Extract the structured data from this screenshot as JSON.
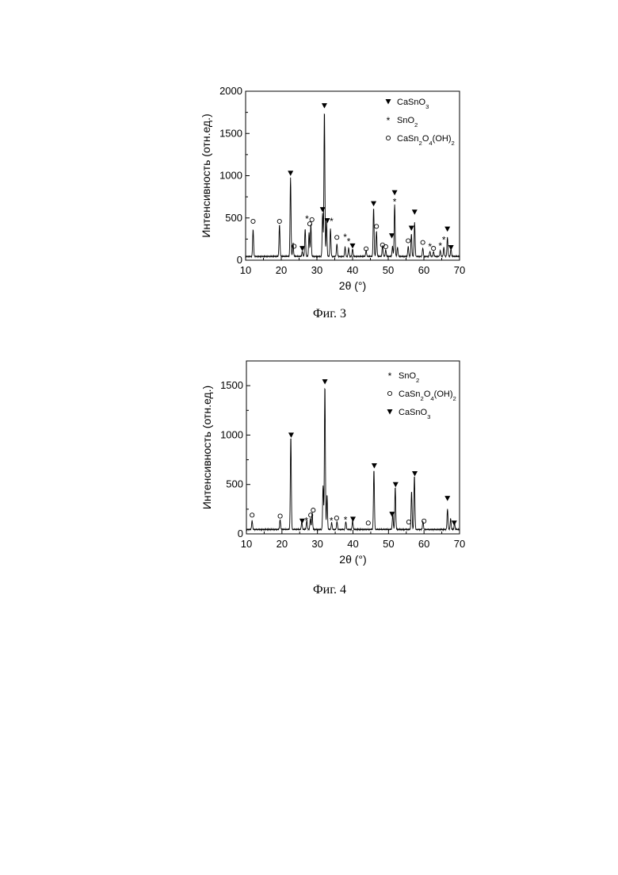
{
  "chart_data": [
    {
      "type": "line",
      "figure_caption": "Фиг. 3",
      "xlabel": "2θ (°)",
      "ylabel": "Интенсивность (отн.ед.)",
      "xlim": [
        10,
        70
      ],
      "ylim": [
        0,
        2000
      ],
      "xticks": [
        10,
        20,
        30,
        40,
        50,
        60,
        70
      ],
      "yticks": [
        0,
        500,
        1000,
        1500,
        2000
      ],
      "grid": false,
      "legend_position": "top-right",
      "legend": [
        {
          "symbol": "▼",
          "label": "CaSnO₃"
        },
        {
          "symbol": "*",
          "label": "SnO₂"
        },
        {
          "symbol": "○",
          "label": "CaSn₂O₄(OH)₂"
        }
      ],
      "series": [
        {
          "baseline": 45,
          "peaks": [
            [
              12.1,
              320
            ],
            [
              19.5,
              380
            ],
            [
              22.6,
              930
            ],
            [
              23.3,
              160
            ],
            [
              25.9,
              60
            ],
            [
              26.7,
              330
            ],
            [
              27.8,
              280
            ],
            [
              28.3,
              380
            ],
            [
              31.6,
              520
            ],
            [
              32.1,
              1740
            ],
            [
              32.7,
              420
            ],
            [
              33.8,
              330
            ],
            [
              35.6,
              150
            ],
            [
              37.9,
              110
            ],
            [
              38.9,
              100
            ],
            [
              40.0,
              90
            ],
            [
              43.8,
              70
            ],
            [
              45.9,
              580
            ],
            [
              46.7,
              300
            ],
            [
              48.4,
              130
            ],
            [
              49.3,
              80
            ],
            [
              51.2,
              120
            ],
            [
              51.8,
              620
            ],
            [
              52.6,
              110
            ],
            [
              55.6,
              120
            ],
            [
              56.5,
              270
            ],
            [
              57.4,
              400
            ],
            [
              59.7,
              100
            ],
            [
              61.7,
              60
            ],
            [
              62.7,
              60
            ],
            [
              64.6,
              70
            ],
            [
              65.6,
              110
            ],
            [
              66.6,
              230
            ],
            [
              67.6,
              90
            ]
          ]
        }
      ],
      "markers": [
        {
          "x": 12.1,
          "y": 460,
          "symbol": "○"
        },
        {
          "x": 19.5,
          "y": 460,
          "symbol": "○"
        },
        {
          "x": 22.6,
          "y": 1030,
          "symbol": "▼"
        },
        {
          "x": 23.6,
          "y": 165,
          "symbol": "○"
        },
        {
          "x": 25.9,
          "y": 140,
          "symbol": "▼"
        },
        {
          "x": 27.2,
          "y": 500,
          "symbol": "*"
        },
        {
          "x": 28.0,
          "y": 430,
          "symbol": "○"
        },
        {
          "x": 28.6,
          "y": 480,
          "symbol": "○"
        },
        {
          "x": 31.6,
          "y": 600,
          "symbol": "▼"
        },
        {
          "x": 32.1,
          "y": 1830,
          "symbol": "▼"
        },
        {
          "x": 32.9,
          "y": 470,
          "symbol": "▼"
        },
        {
          "x": 34.1,
          "y": 470,
          "symbol": "*"
        },
        {
          "x": 35.6,
          "y": 270,
          "symbol": "○"
        },
        {
          "x": 37.9,
          "y": 280,
          "symbol": "*"
        },
        {
          "x": 38.9,
          "y": 230,
          "symbol": "*"
        },
        {
          "x": 40.0,
          "y": 170,
          "symbol": "▼"
        },
        {
          "x": 43.8,
          "y": 135,
          "symbol": "○"
        },
        {
          "x": 45.9,
          "y": 670,
          "symbol": "▼"
        },
        {
          "x": 46.7,
          "y": 400,
          "symbol": "○"
        },
        {
          "x": 48.4,
          "y": 180,
          "symbol": "○"
        },
        {
          "x": 49.3,
          "y": 160,
          "symbol": "○"
        },
        {
          "x": 51.0,
          "y": 290,
          "symbol": "▼"
        },
        {
          "x": 51.8,
          "y": 800,
          "symbol": "▼"
        },
        {
          "x": 51.8,
          "y": 700,
          "symbol": "*"
        },
        {
          "x": 55.6,
          "y": 230,
          "symbol": "○"
        },
        {
          "x": 56.5,
          "y": 380,
          "symbol": "▼"
        },
        {
          "x": 57.4,
          "y": 570,
          "symbol": "▼"
        },
        {
          "x": 59.7,
          "y": 210,
          "symbol": "○"
        },
        {
          "x": 61.7,
          "y": 170,
          "symbol": "*"
        },
        {
          "x": 62.7,
          "y": 140,
          "symbol": "○"
        },
        {
          "x": 64.6,
          "y": 180,
          "symbol": "*"
        },
        {
          "x": 65.6,
          "y": 250,
          "symbol": "*"
        },
        {
          "x": 66.6,
          "y": 370,
          "symbol": "▼"
        },
        {
          "x": 67.6,
          "y": 150,
          "symbol": "▼"
        }
      ]
    },
    {
      "type": "line",
      "figure_caption": "Фиг. 4",
      "xlabel": "2θ (°)",
      "ylabel": "Интенсивность (отн.ед.)",
      "xlim": [
        10,
        70
      ],
      "ylim": [
        0,
        1750
      ],
      "xticks": [
        10,
        20,
        30,
        40,
        50,
        60,
        70
      ],
      "yticks": [
        0,
        500,
        1000,
        1500
      ],
      "grid": false,
      "legend_position": "top-right",
      "legend": [
        {
          "symbol": "*",
          "label": "SnO₂"
        },
        {
          "symbol": "○",
          "label": "CaSn₂O₄(OH)₂"
        },
        {
          "symbol": "▼",
          "label": "CaSnO₃"
        }
      ],
      "series": [
        {
          "baseline": 45,
          "peaks": [
            [
              11.6,
              90
            ],
            [
              19.5,
              100
            ],
            [
              22.5,
              950
            ],
            [
              25.6,
              80
            ],
            [
              27.0,
              90
            ],
            [
              28.0,
              110
            ],
            [
              28.5,
              170
            ],
            [
              31.6,
              450
            ],
            [
              32.1,
              1470
            ],
            [
              32.7,
              350
            ],
            [
              34.0,
              70
            ],
            [
              35.5,
              80
            ],
            [
              38.0,
              80
            ],
            [
              39.9,
              90
            ],
            [
              45.9,
              610
            ],
            [
              51.2,
              160
            ],
            [
              51.9,
              430
            ],
            [
              56.5,
              390
            ],
            [
              57.3,
              550
            ],
            [
              59.7,
              80
            ],
            [
              66.6,
              210
            ],
            [
              67.5,
              110
            ],
            [
              68.6,
              60
            ]
          ]
        }
      ],
      "markers": [
        {
          "x": 11.6,
          "y": 190,
          "symbol": "○"
        },
        {
          "x": 19.5,
          "y": 180,
          "symbol": "○"
        },
        {
          "x": 22.6,
          "y": 1000,
          "symbol": "▼"
        },
        {
          "x": 25.7,
          "y": 130,
          "symbol": "▼"
        },
        {
          "x": 26.9,
          "y": 140,
          "symbol": "*"
        },
        {
          "x": 28.1,
          "y": 190,
          "symbol": "○"
        },
        {
          "x": 28.8,
          "y": 240,
          "symbol": "○"
        },
        {
          "x": 32.1,
          "y": 1540,
          "symbol": "▼"
        },
        {
          "x": 33.9,
          "y": 140,
          "symbol": "*"
        },
        {
          "x": 35.4,
          "y": 160,
          "symbol": "○"
        },
        {
          "x": 37.9,
          "y": 150,
          "symbol": "*"
        },
        {
          "x": 40.0,
          "y": 150,
          "symbol": "▼"
        },
        {
          "x": 44.3,
          "y": 110,
          "symbol": "○"
        },
        {
          "x": 46.0,
          "y": 690,
          "symbol": "▼"
        },
        {
          "x": 51.0,
          "y": 200,
          "symbol": "▼"
        },
        {
          "x": 52.0,
          "y": 500,
          "symbol": "▼"
        },
        {
          "x": 55.7,
          "y": 120,
          "symbol": "○"
        },
        {
          "x": 57.4,
          "y": 610,
          "symbol": "▼"
        },
        {
          "x": 60.0,
          "y": 130,
          "symbol": "○"
        },
        {
          "x": 66.6,
          "y": 360,
          "symbol": "▼"
        },
        {
          "x": 68.5,
          "y": 110,
          "symbol": "▼"
        }
      ]
    }
  ]
}
